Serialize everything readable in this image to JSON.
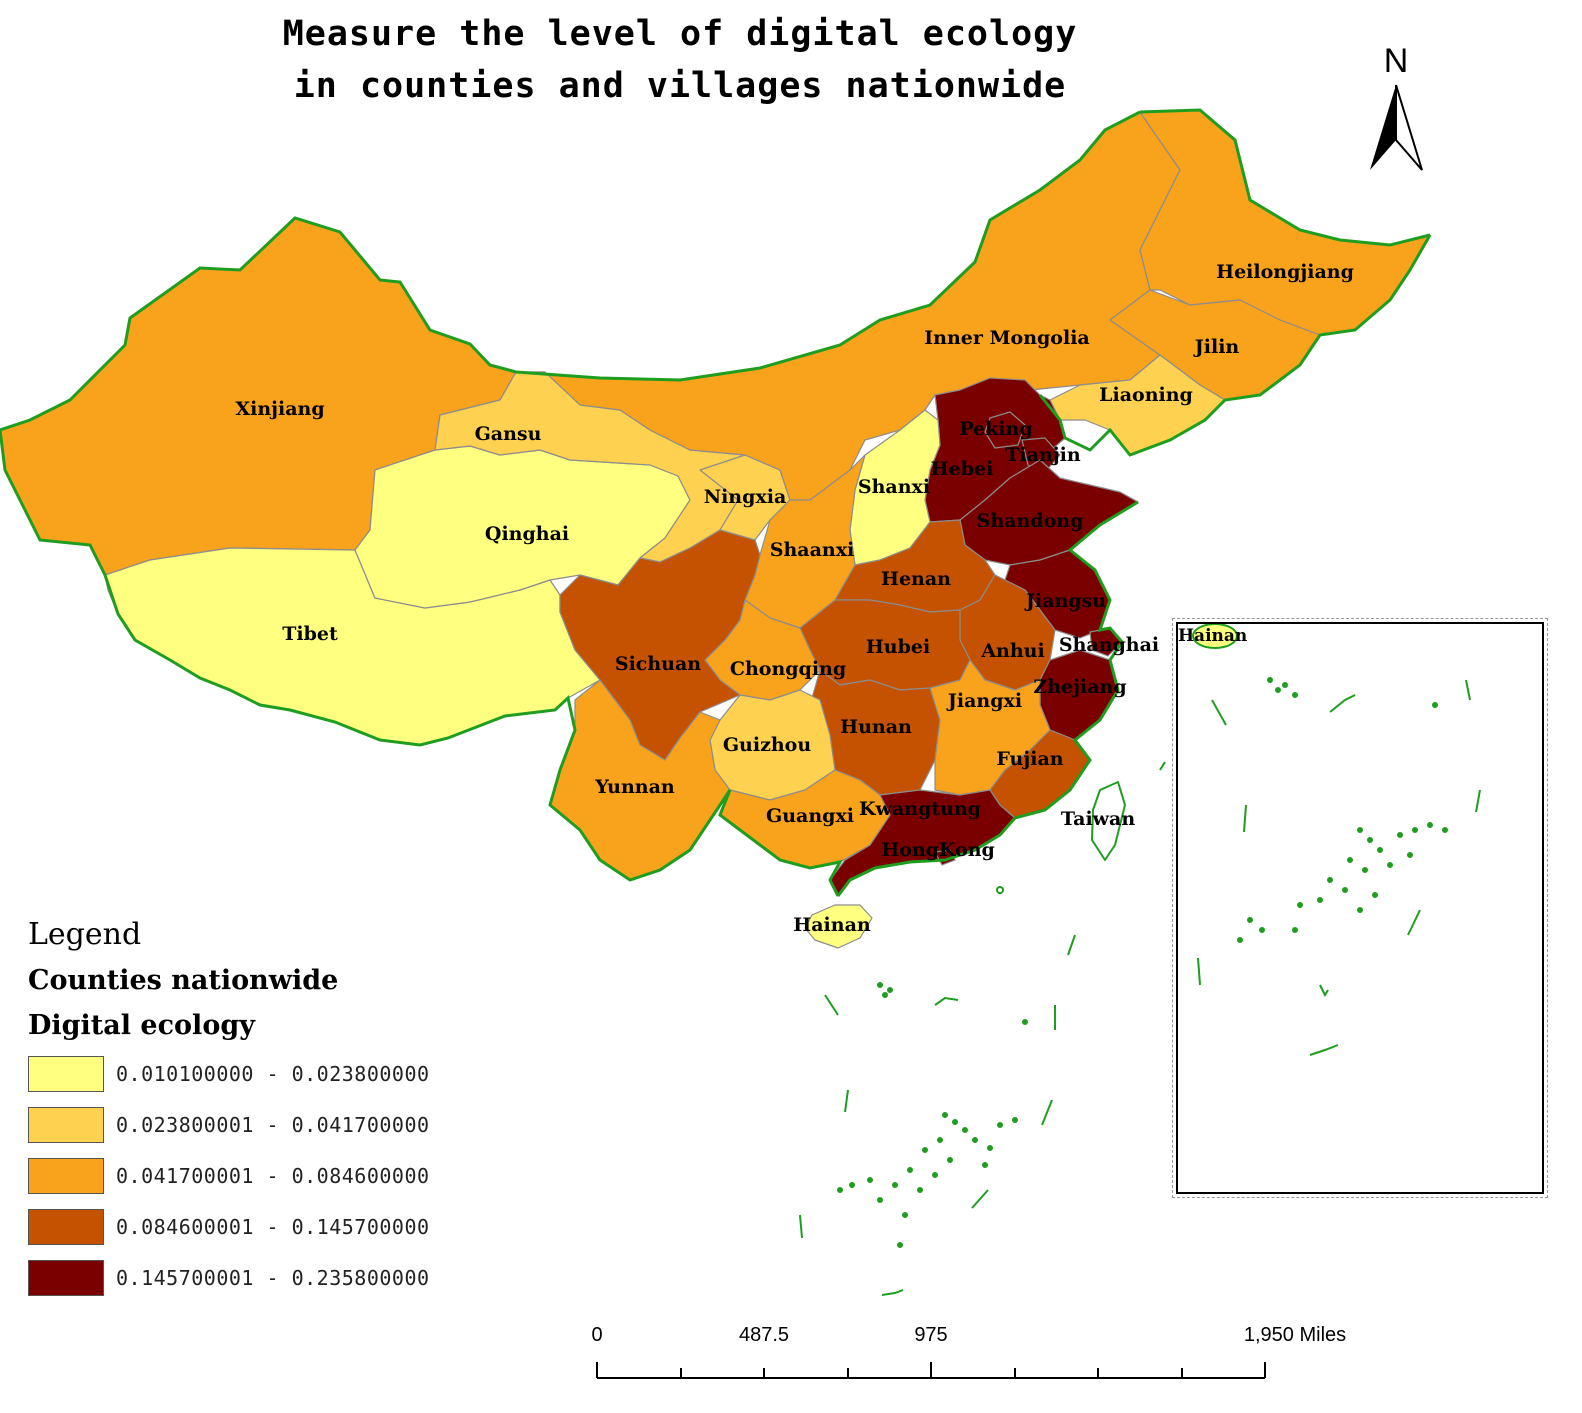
{
  "title": {
    "line1": "Measure the level of digital ecology",
    "line2": "in counties and villages nationwide"
  },
  "north_arrow": {
    "label": "N",
    "icon": "north-arrow-icon"
  },
  "legend": {
    "title": "Legend",
    "layer": "Counties nationwide",
    "field": "Digital ecology",
    "classes": [
      {
        "range": "0.010100000 - 0.023800000",
        "color": "#ffff80"
      },
      {
        "range": "0.023800001 - 0.041700000",
        "color": "#ffd150"
      },
      {
        "range": "0.041700001 - 0.084600000",
        "color": "#f9a21c"
      },
      {
        "range": "0.084600001 - 0.145700000",
        "color": "#c45200"
      },
      {
        "range": "0.145700001 - 0.235800000",
        "color": "#7a0000"
      }
    ]
  },
  "provinces": [
    {
      "name": "Xinjiang",
      "class": 2
    },
    {
      "name": "Tibet",
      "class": 0
    },
    {
      "name": "Qinghai",
      "class": 0
    },
    {
      "name": "Gansu",
      "class": 1
    },
    {
      "name": "Ningxia",
      "class": 1
    },
    {
      "name": "Inner Mongolia",
      "class": 2
    },
    {
      "name": "Heilongjiang",
      "class": 2
    },
    {
      "name": "Jilin",
      "class": 2
    },
    {
      "name": "Liaoning",
      "class": 1
    },
    {
      "name": "Peking",
      "class": 4
    },
    {
      "name": "Tianjin",
      "class": 4
    },
    {
      "name": "Hebei",
      "class": 4
    },
    {
      "name": "Shanxi",
      "class": 0
    },
    {
      "name": "Shaanxi",
      "class": 2
    },
    {
      "name": "Shandong",
      "class": 4
    },
    {
      "name": "Henan",
      "class": 3
    },
    {
      "name": "Jiangsu",
      "class": 4
    },
    {
      "name": "Shanghai",
      "class": 4
    },
    {
      "name": "Anhui",
      "class": 3
    },
    {
      "name": "Hubei",
      "class": 3
    },
    {
      "name": "Sichuan",
      "class": 3
    },
    {
      "name": "Chongqing",
      "class": 2
    },
    {
      "name": "Zhejiang",
      "class": 4
    },
    {
      "name": "Jiangxi",
      "class": 2
    },
    {
      "name": "Hunan",
      "class": 3
    },
    {
      "name": "Guizhou",
      "class": 1
    },
    {
      "name": "Yunnan",
      "class": 2
    },
    {
      "name": "Guangxi",
      "class": 2
    },
    {
      "name": "Fujian",
      "class": 3
    },
    {
      "name": "Kwangtung",
      "class": 4
    },
    {
      "name": "HongKong",
      "class": 4
    },
    {
      "name": "Taiwan",
      "class": null
    },
    {
      "name": "Hainan",
      "class": 0
    }
  ],
  "inset": {
    "label": "Hainan"
  },
  "scale_bar": {
    "labels": [
      "0",
      "487.5",
      "975",
      "1,950 Miles"
    ]
  }
}
